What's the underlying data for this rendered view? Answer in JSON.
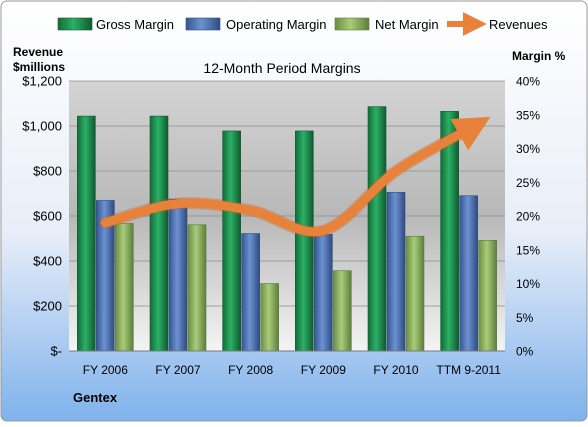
{
  "company": "Gentex",
  "chart_data": {
    "type": "bar",
    "title": "12-Month Period Margins",
    "left_axis_label_line1": "Revenue",
    "left_axis_label_line2": "$millions",
    "right_axis_label": "Margin %",
    "categories": [
      "FY 2006",
      "FY 2007",
      "FY 2008",
      "FY 2009",
      "FY 2010",
      "TTM 9-2011"
    ],
    "left_ticks": [
      "$-",
      "$200",
      "$400",
      "$600",
      "$800",
      "$1,000",
      "$1,200"
    ],
    "right_ticks": [
      "0%",
      "5%",
      "10%",
      "15%",
      "20%",
      "25%",
      "30%",
      "35%",
      "40%"
    ],
    "ylim_revenue": [
      0,
      1200
    ],
    "ylim_margin": [
      0,
      40
    ],
    "grid": true,
    "legend_position": "top",
    "series": [
      {
        "name": "Gross Margin",
        "kind": "bar",
        "axis": "right",
        "color": "#1f8a4c",
        "values": [
          34.8,
          34.8,
          32.6,
          32.6,
          36.2,
          35.5
        ]
      },
      {
        "name": "Operating Margin",
        "kind": "bar",
        "axis": "right",
        "color": "#4f74b8",
        "values": [
          22.3,
          22.5,
          17.4,
          17.3,
          23.5,
          23.0
        ]
      },
      {
        "name": "Net Margin",
        "kind": "bar",
        "axis": "right",
        "color": "#8db561",
        "values": [
          18.9,
          18.7,
          10.0,
          11.9,
          17.0,
          16.4
        ]
      },
      {
        "name": "Revenues",
        "kind": "line",
        "axis": "left",
        "color": "#e8823a",
        "values": [
          570,
          655,
          625,
          535,
          800,
          985
        ]
      }
    ]
  }
}
